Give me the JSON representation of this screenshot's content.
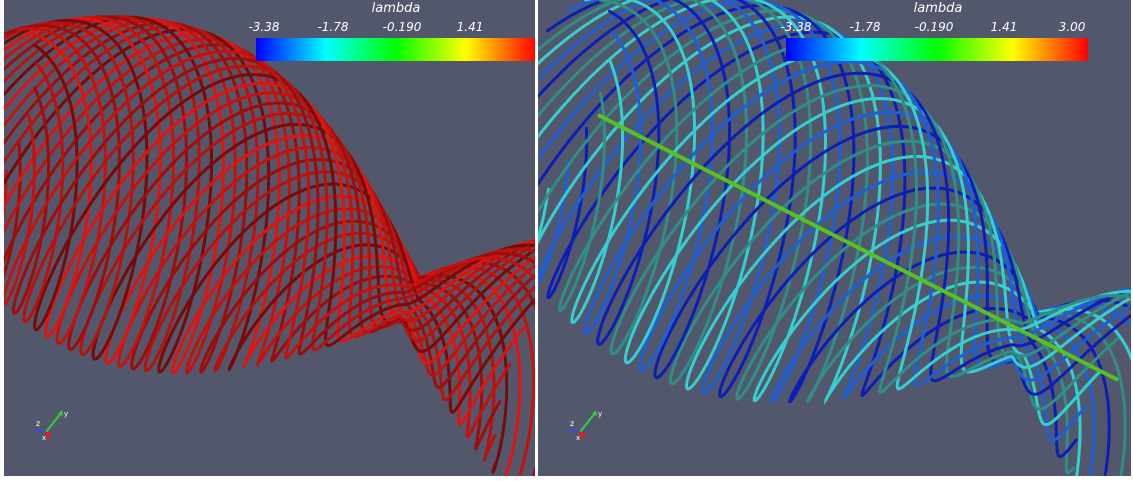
{
  "left_view": {
    "colorbar": {
      "title": "lambda",
      "tick_labels": [
        "-3.38",
        "-1.78",
        "-0.190",
        "1.41"
      ],
      "gradient_colors": [
        "#0000ff",
        "#00ffff",
        "#00ff00",
        "#ffff00",
        "#ff0000"
      ]
    },
    "tube_color": "#c8100c",
    "axes_triad_icon": "orientation-axes-icon"
  },
  "right_view": {
    "colorbar": {
      "title": "lambda",
      "tick_labels": [
        "-3.38",
        "-1.78",
        "-0.190",
        "1.41",
        "3.00"
      ],
      "gradient_colors": [
        "#0000ff",
        "#00ffff",
        "#00ff00",
        "#ffff00",
        "#ff0000"
      ]
    },
    "tube_colors": [
      "#0b1fb8",
      "#1e5fd6",
      "#35cfd0",
      "#2f8f86",
      "#58c020"
    ],
    "axes_triad_icon": "orientation-axes-icon"
  },
  "background_color": "#52576b"
}
